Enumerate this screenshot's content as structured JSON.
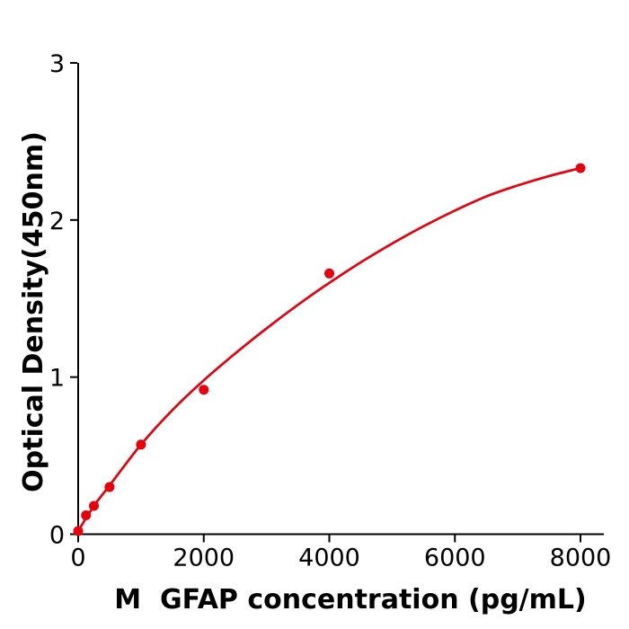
{
  "figure": {
    "background": "#ffffff"
  },
  "chart_data": {
    "type": "scatter",
    "title": "",
    "xlabel": "M  GFAP concentration (pg/mL)",
    "ylabel": "Optical Density(450nm)",
    "x_ticks": [
      0,
      2000,
      4000,
      6000,
      8000
    ],
    "y_ticks": [
      0,
      1,
      2,
      3
    ],
    "xlim": [
      0,
      8370
    ],
    "ylim": [
      0,
      3
    ],
    "grid": false,
    "legend": "none",
    "marker_color": "#e8000d",
    "line_color": "#e8000d",
    "axis_color": "#000000",
    "points": [
      {
        "x": 0,
        "y": 0.02
      },
      {
        "x": 125,
        "y": 0.12
      },
      {
        "x": 250,
        "y": 0.18
      },
      {
        "x": 500,
        "y": 0.3
      },
      {
        "x": 1000,
        "y": 0.57
      },
      {
        "x": 2000,
        "y": 0.92
      },
      {
        "x": 4000,
        "y": 1.66
      },
      {
        "x": 8000,
        "y": 2.33
      }
    ],
    "fit_curve": [
      [
        0,
        0.02
      ],
      [
        250,
        0.18
      ],
      [
        500,
        0.31
      ],
      [
        1000,
        0.57
      ],
      [
        1500,
        0.79
      ],
      [
        2000,
        0.98
      ],
      [
        2500,
        1.15
      ],
      [
        3000,
        1.31
      ],
      [
        3500,
        1.46
      ],
      [
        4000,
        1.6
      ],
      [
        4500,
        1.73
      ],
      [
        5000,
        1.85
      ],
      [
        5500,
        1.96
      ],
      [
        6000,
        2.06
      ],
      [
        6500,
        2.15
      ],
      [
        7000,
        2.22
      ],
      [
        7500,
        2.28
      ],
      [
        8000,
        2.33
      ]
    ]
  }
}
